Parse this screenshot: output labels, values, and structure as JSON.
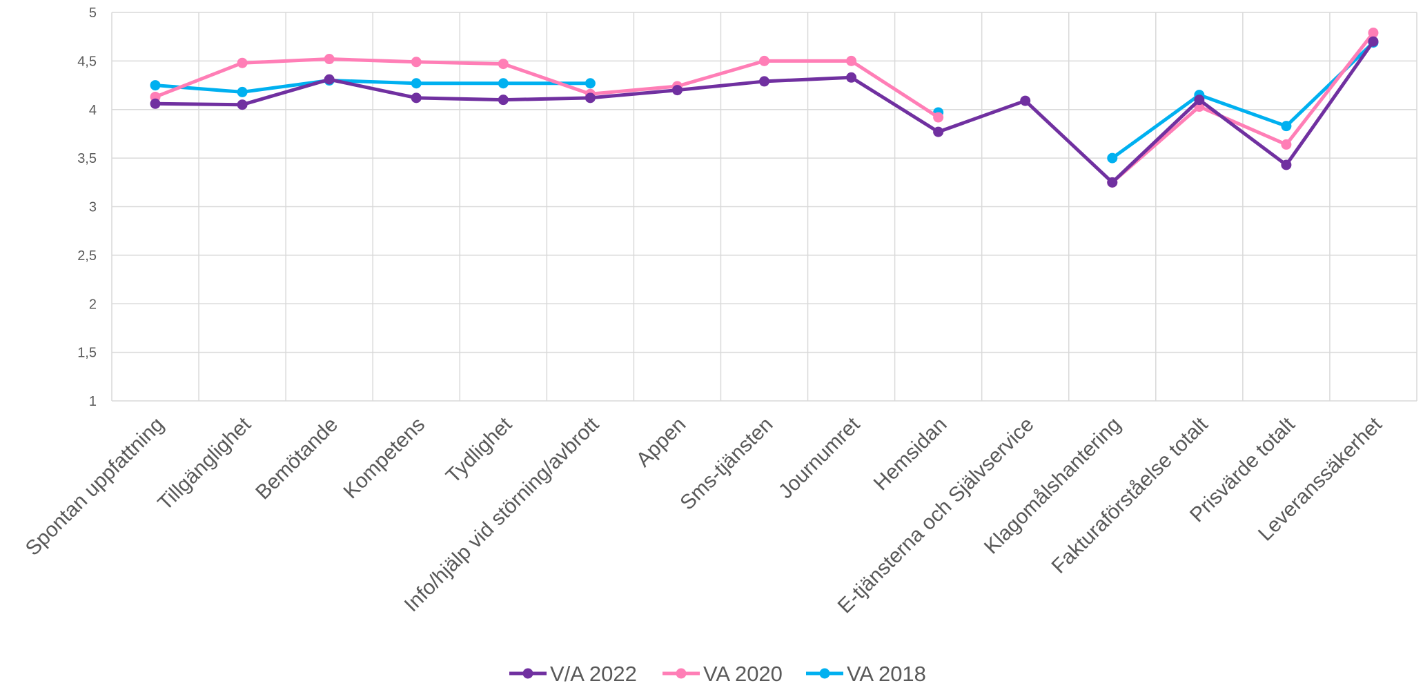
{
  "chart_data": {
    "type": "line",
    "title": "",
    "xlabel": "",
    "ylabel": "",
    "ylim": [
      1,
      5
    ],
    "yticks": [
      "1",
      "1,5",
      "2",
      "2,5",
      "3",
      "3,5",
      "4",
      "4,5",
      "5"
    ],
    "yticks_values": [
      1,
      1.5,
      2,
      2.5,
      3,
      3.5,
      4,
      4.5,
      5
    ],
    "grid": true,
    "legend_position": "bottom",
    "categories": [
      "Spontan uppfattning",
      "Tillgänglighet",
      "Bemötande",
      "Kompetens",
      "Tydlighet",
      "Info/hjälp vid störning/avbrott",
      "Appen",
      "Sms-tjänsten",
      "Journumret",
      "Hemsidan",
      "E-tjänsterna och Självservice",
      "Klagomålshantering",
      "Fakturaförståelse totalt",
      "Prisvärde totalt",
      "Leveranssäkerhet"
    ],
    "series": [
      {
        "name": "V/A 2022",
        "color": "#7030a0",
        "values": [
          4.06,
          4.05,
          4.31,
          4.12,
          4.1,
          4.12,
          4.2,
          4.29,
          4.33,
          3.77,
          4.09,
          3.25,
          4.1,
          3.43,
          4.7
        ]
      },
      {
        "name": "VA 2020",
        "color": "#ff7eb6",
        "values": [
          4.13,
          4.48,
          4.52,
          4.49,
          4.47,
          4.16,
          4.24,
          4.5,
          4.5,
          3.92,
          null,
          3.25,
          4.03,
          3.64,
          4.79
        ]
      },
      {
        "name": "VA 2018",
        "color": "#00b0f0",
        "values": [
          4.25,
          4.18,
          4.3,
          4.27,
          4.27,
          4.27,
          null,
          null,
          null,
          3.97,
          null,
          3.5,
          4.15,
          3.83,
          4.69
        ]
      }
    ]
  }
}
